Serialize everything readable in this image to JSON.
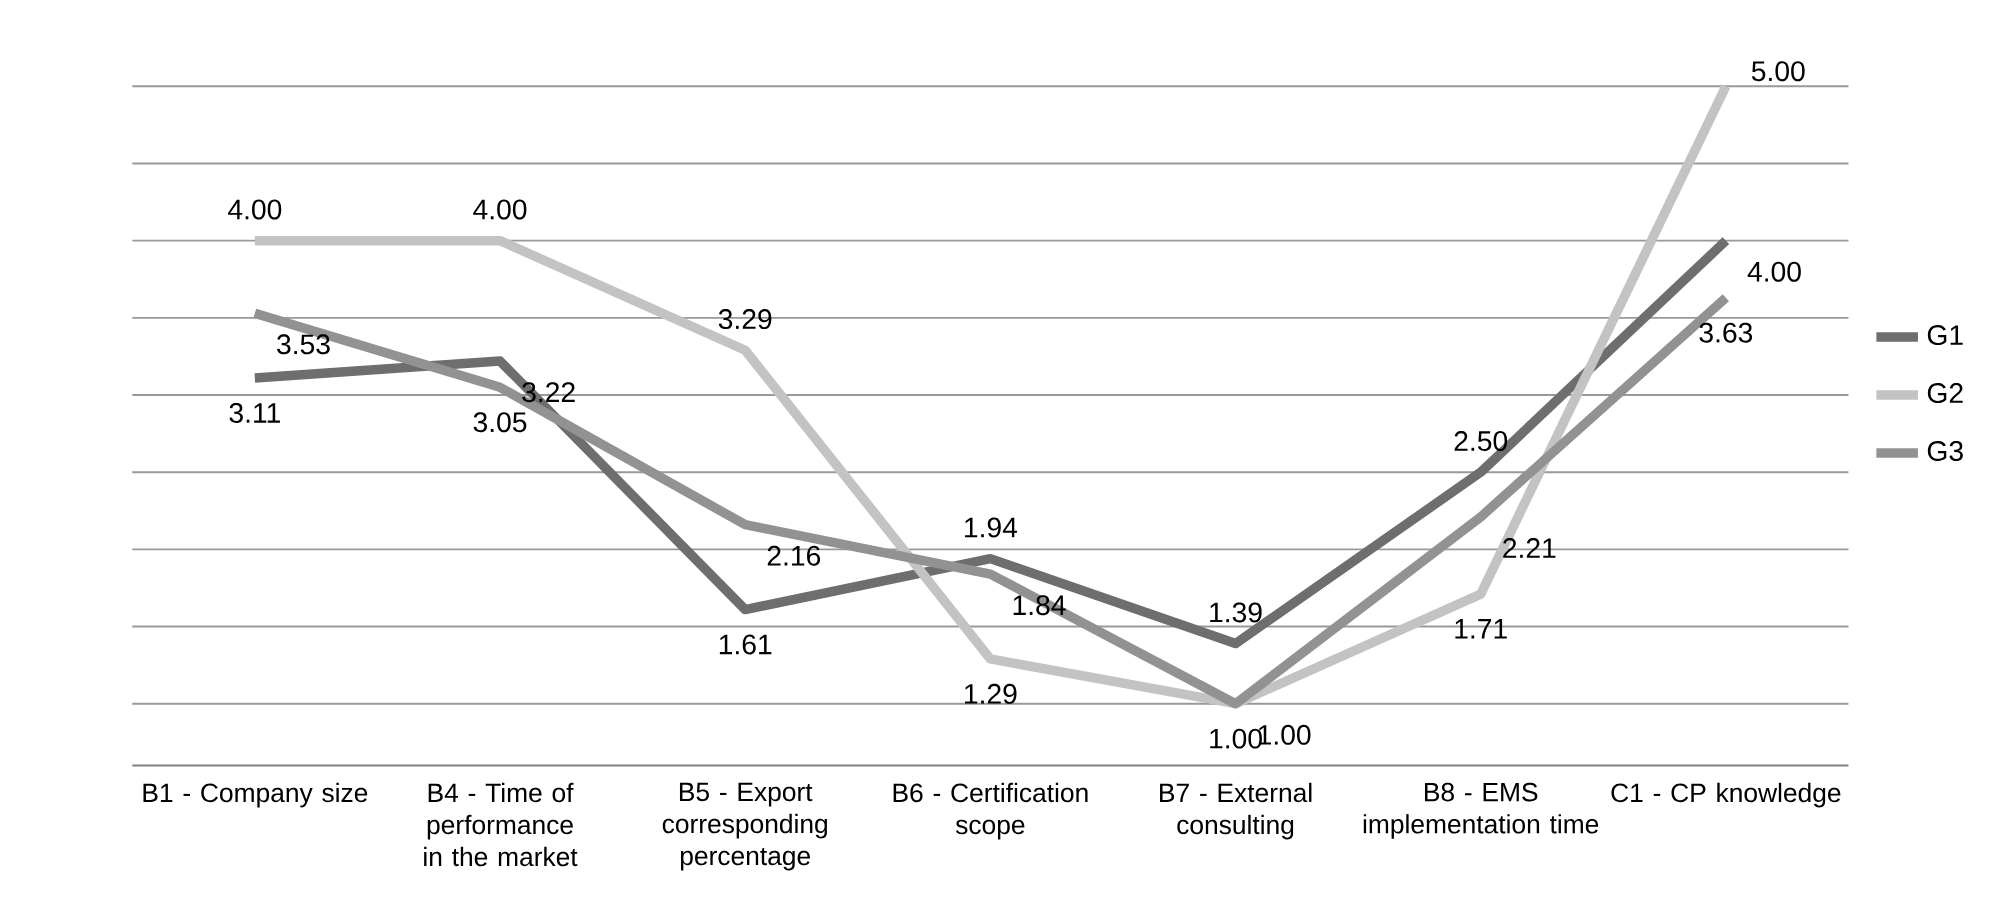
{
  "chart_data": {
    "type": "line",
    "categories": [
      "B1 - Company size",
      "B4 - Time of performance in the market",
      "B5 - Export corresponding percentage",
      "B6 - Certification scope",
      "B7 - External consulting",
      "B8 - EMS implementation time",
      "C1 - CP knowledge"
    ],
    "series": [
      {
        "name": "G1",
        "color": "#6e6e6e",
        "values": [
          3.11,
          3.22,
          1.61,
          1.94,
          1.39,
          2.5,
          4.0
        ],
        "value_labels": [
          "3.11",
          "3.22",
          "1.61",
          "1.94",
          "1.39",
          "2.50",
          "4.00"
        ]
      },
      {
        "name": "G2",
        "color": "#c3c3c3",
        "values": [
          4.0,
          4.0,
          3.29,
          1.29,
          1.0,
          1.71,
          5.0
        ],
        "value_labels": [
          "4.00",
          "4.00",
          "3.29",
          "1.29",
          "1.00",
          "1.71",
          "5.00"
        ]
      },
      {
        "name": "G3",
        "color": "#929292",
        "values": [
          3.53,
          3.05,
          2.16,
          1.84,
          1.0,
          2.21,
          3.63
        ],
        "value_labels": [
          "3.53",
          "3.05",
          "2.16",
          "1.84",
          "1.00",
          "2.21",
          "3.63"
        ]
      }
    ],
    "tick_labels": "x",
    "grid": "y",
    "legend": "right",
    "marker": "none",
    "line_style": "solid"
  }
}
